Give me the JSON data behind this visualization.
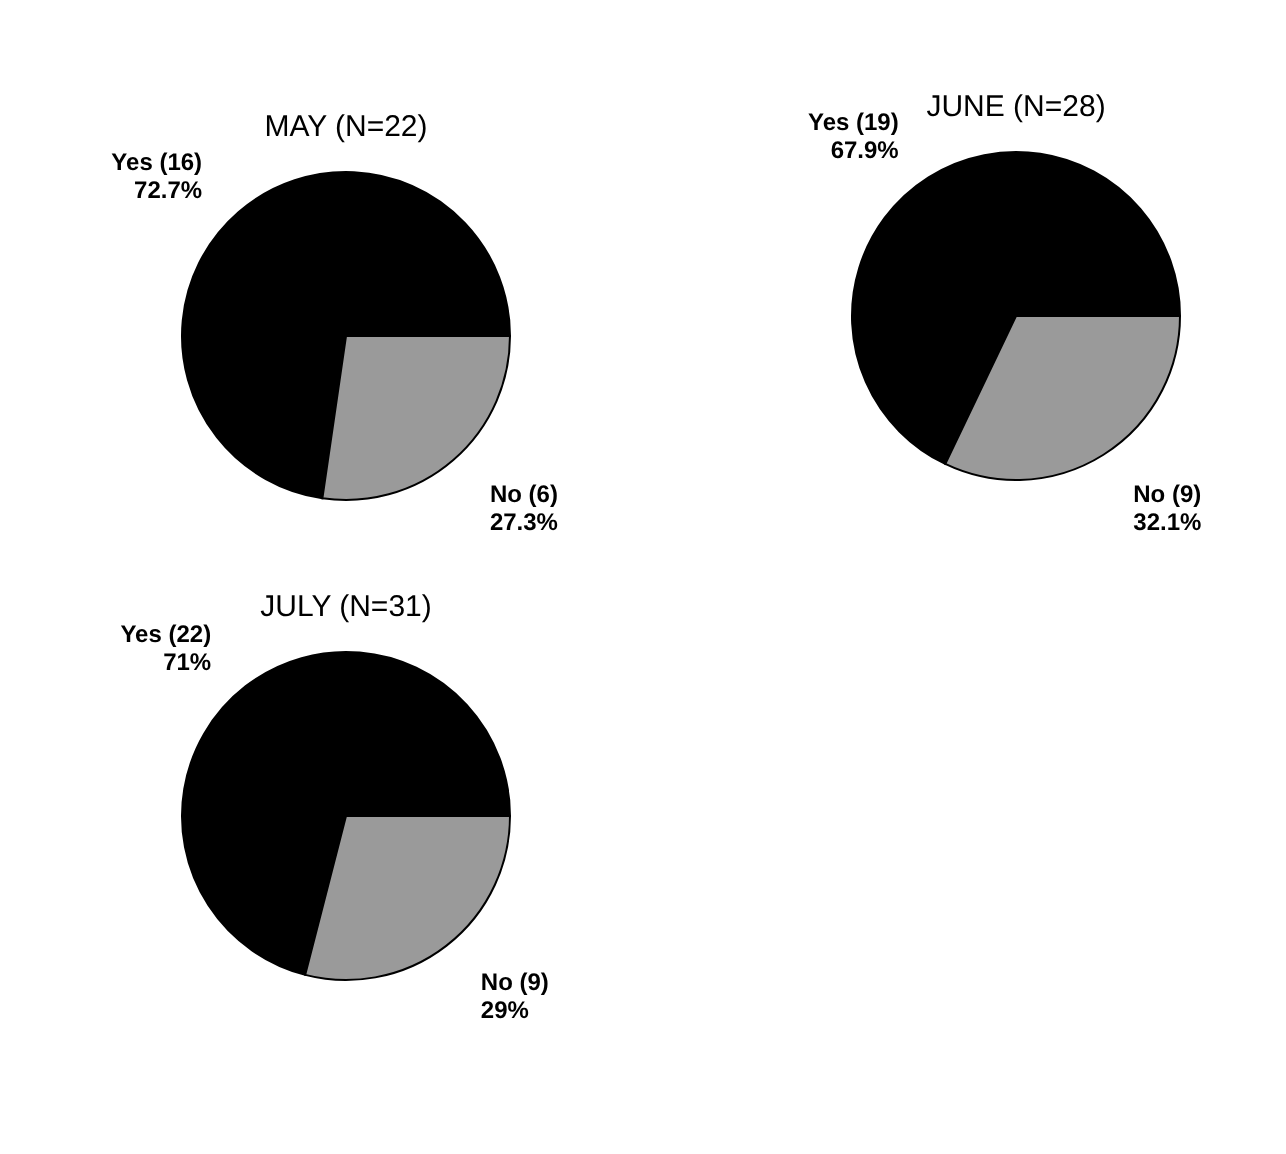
{
  "chart_data": [
    {
      "type": "pie",
      "title": "MAY (N=22)",
      "categories": [
        "Yes (16)",
        "No (6)"
      ],
      "values": [
        72.7,
        27.3
      ],
      "value_labels": [
        "72.7%",
        "27.3%"
      ],
      "colors": [
        "#000000",
        "#9a9a9a"
      ]
    },
    {
      "type": "pie",
      "title": "JUNE (N=28)",
      "categories": [
        "Yes (19)",
        "No (9)"
      ],
      "values": [
        67.9,
        32.1
      ],
      "value_labels": [
        "67.9%",
        "32.1%"
      ],
      "colors": [
        "#000000",
        "#9a9a9a"
      ]
    },
    {
      "type": "pie",
      "title": "JULY (N=31)",
      "categories": [
        "Yes (22)",
        "No (9)"
      ],
      "values": [
        71,
        29
      ],
      "value_labels": [
        "71%",
        "29%"
      ],
      "colors": [
        "#000000",
        "#9a9a9a"
      ]
    }
  ]
}
